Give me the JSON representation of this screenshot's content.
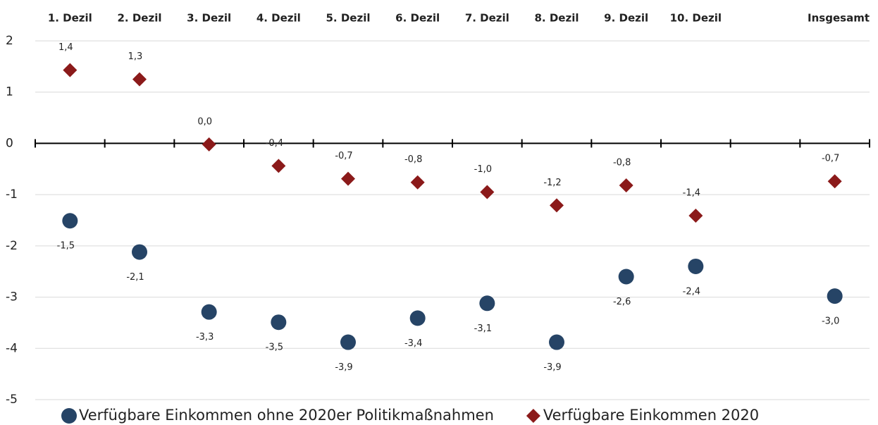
{
  "chart_data": {
    "type": "scatter",
    "categories": [
      "1. Dezil",
      "2. Dezil",
      "3. Dezil",
      "4. Dezil",
      "5. Dezil",
      "6. Dezil",
      "7. Dezil",
      "8. Dezil",
      "9. Dezil",
      "10. Dezil",
      null,
      "Insgesamt"
    ],
    "series": [
      {
        "name": "Verfügbare Einkommen ohne 2020er Politikmaßnahmen",
        "color": "#264466",
        "marker": "circle",
        "values": [
          -1.51,
          -2.12,
          -3.29,
          -3.49,
          -3.88,
          -3.41,
          -3.12,
          -3.88,
          -2.6,
          -2.4,
          null,
          -2.98
        ],
        "value_labels": [
          "-1,5",
          "-2,1",
          "-3,3",
          "-3,5",
          "-3,9",
          "-3,4",
          "-3,1",
          "-3,9",
          "-2,6",
          "-2,4",
          null,
          "-3,0"
        ]
      },
      {
        "name": "Verfügbare Einkommen 2020",
        "color": "#8b1a1a",
        "marker": "diamond",
        "values": [
          1.43,
          1.25,
          -0.02,
          -0.44,
          -0.69,
          -0.76,
          -0.95,
          -1.21,
          -0.82,
          -1.41,
          null,
          -0.74
        ],
        "value_labels": [
          "1,4",
          "1,3",
          "0,0",
          "-0,4",
          "-0,7",
          "-0,8",
          "-1,0",
          "-1,2",
          "-0,8",
          "-1,4",
          null,
          "-0,7"
        ]
      }
    ],
    "ylim": [
      -5,
      2
    ],
    "yticks": [
      -5,
      -4,
      -3,
      -2,
      -1,
      0,
      1,
      2
    ],
    "grid": true,
    "legend": "bottom"
  }
}
